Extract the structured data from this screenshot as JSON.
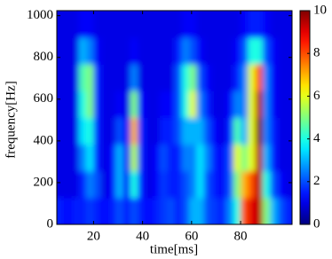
{
  "chart_data": {
    "type": "heatmap",
    "xlabel": "time[ms]",
    "ylabel": "frequency[Hz]",
    "colormap": "jet",
    "xbins": [
      5,
      8,
      11,
      14,
      17,
      20,
      23,
      26,
      29,
      32,
      35,
      38,
      41,
      44,
      47,
      50,
      53,
      56,
      59,
      62,
      65,
      68,
      71,
      74,
      77,
      80,
      83,
      86,
      89,
      92,
      95,
      98,
      101
    ],
    "ybins": [
      0,
      128,
      256,
      384,
      512,
      640,
      768,
      896,
      1024
    ],
    "z": [
      [
        1.5,
        1.3,
        1.5,
        1.5,
        1.8,
        1.5,
        1.3,
        1.5,
        2,
        1.5,
        2,
        1.5,
        1.3,
        1.5,
        1.8,
        2,
        1.5,
        2,
        3,
        3,
        2,
        1.8,
        1.5,
        2.5,
        4,
        8,
        9,
        9.5,
        5,
        3,
        2,
        1.5
      ],
      [
        1,
        1,
        1,
        1.5,
        2.5,
        2,
        1,
        1.2,
        3,
        1.2,
        4,
        1.5,
        1,
        1.2,
        1.8,
        1.5,
        1.5,
        2,
        2.5,
        3.5,
        2,
        1.5,
        1.2,
        2,
        5,
        7,
        8,
        9.5,
        4,
        2,
        1.2,
        1
      ],
      [
        1,
        1,
        1,
        2.5,
        3.5,
        1.5,
        1,
        1.2,
        3,
        1.2,
        5.5,
        1.5,
        1,
        1.2,
        2,
        1.5,
        1.5,
        2.5,
        2.5,
        3.5,
        2.5,
        1.5,
        1.2,
        2,
        6,
        5,
        6,
        9.5,
        3,
        1.5,
        1,
        1
      ],
      [
        1,
        1,
        1,
        3.5,
        4,
        1.5,
        1,
        1,
        2,
        1.2,
        7,
        1.5,
        1,
        1,
        1.5,
        1.5,
        2,
        3,
        3,
        3,
        2,
        1.2,
        1,
        1.5,
        4.5,
        3,
        6,
        10,
        2.5,
        1.5,
        1,
        1
      ],
      [
        1,
        1,
        1,
        4,
        5,
        1.5,
        1,
        1,
        1.2,
        1,
        5,
        1.2,
        1,
        1,
        1.2,
        1.2,
        2,
        4,
        6,
        2.5,
        1.5,
        1,
        1,
        1.2,
        2.5,
        2.5,
        6,
        9.5,
        2.5,
        1.2,
        1,
        1
      ],
      [
        1,
        1,
        1,
        4.5,
        5,
        1.5,
        1,
        1,
        1,
        1,
        2.5,
        1,
        1,
        1,
        1,
        1,
        2,
        4,
        5,
        2,
        1.2,
        1,
        1,
        1,
        1.5,
        2.5,
        6,
        8,
        2.5,
        1.2,
        1,
        1
      ],
      [
        1,
        1,
        1,
        3,
        2.5,
        1.2,
        1,
        1,
        1,
        1,
        1.2,
        1,
        1,
        1,
        1,
        1,
        1.5,
        2.5,
        2,
        1.2,
        1,
        1,
        1,
        1,
        1.2,
        2,
        4,
        4,
        2,
        1.2,
        1,
        1
      ],
      [
        1,
        1,
        1,
        1.2,
        1.2,
        1,
        1,
        1,
        1,
        1,
        1,
        1,
        1,
        1,
        1,
        1,
        1,
        1.2,
        1.2,
        1,
        1,
        1,
        1,
        1,
        1,
        1.2,
        1.5,
        1.5,
        1.2,
        1,
        1,
        1
      ]
    ],
    "xlim": [
      5,
      101
    ],
    "xticks": [
      20,
      40,
      60,
      80
    ],
    "ylim": [
      0,
      1024
    ],
    "yticks": [
      0,
      200,
      400,
      600,
      800,
      1000
    ],
    "clim": [
      0,
      10
    ],
    "cticks": [
      0,
      2,
      4,
      6,
      8,
      10
    ]
  }
}
